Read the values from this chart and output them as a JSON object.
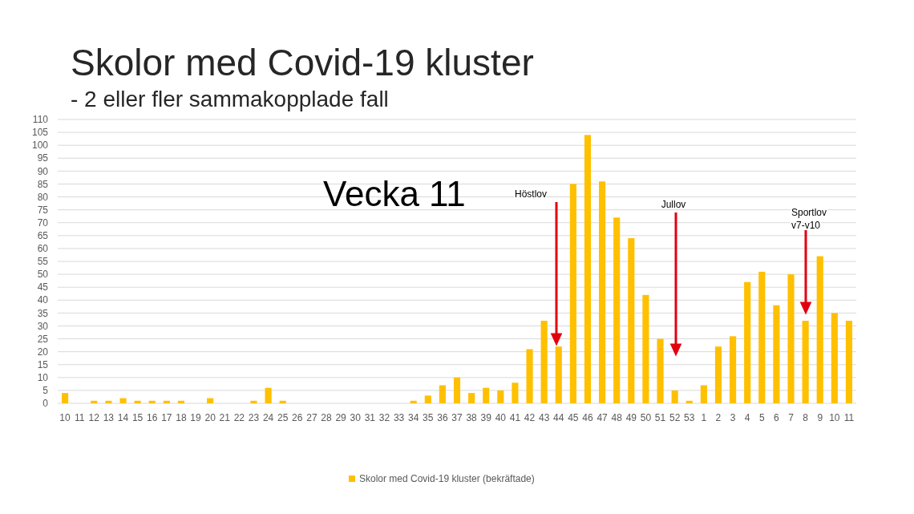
{
  "chart_data": {
    "type": "bar",
    "title": "Skolor med Covid-19 kluster",
    "subtitle": "- 2 eller fler sammakopplade fall",
    "categories": [
      "10",
      "11",
      "12",
      "13",
      "14",
      "15",
      "16",
      "17",
      "18",
      "19",
      "20",
      "21",
      "22",
      "23",
      "24",
      "25",
      "26",
      "27",
      "28",
      "29",
      "30",
      "31",
      "32",
      "33",
      "34",
      "35",
      "36",
      "37",
      "38",
      "39",
      "40",
      "41",
      "42",
      "43",
      "44",
      "45",
      "46",
      "47",
      "48",
      "49",
      "50",
      "51",
      "52",
      "53",
      "1",
      "2",
      "3",
      "4",
      "5",
      "6",
      "7",
      "8",
      "9",
      "10",
      "11"
    ],
    "series": [
      {
        "name": "Skolor med Covid-19 kluster (bekräftade)",
        "color": "#ffc000",
        "values": [
          4,
          0,
          1,
          1,
          2,
          1,
          1,
          1,
          1,
          0,
          2,
          0,
          0,
          1,
          6,
          1,
          0,
          0,
          0,
          0,
          0,
          0,
          0,
          0,
          1,
          3,
          7,
          10,
          4,
          6,
          5,
          8,
          21,
          32,
          22,
          85,
          104,
          86,
          72,
          64,
          42,
          25,
          5,
          1,
          7,
          22,
          26,
          47,
          51,
          38,
          50,
          32,
          57,
          35,
          32
        ]
      }
    ],
    "ylim": [
      0,
      110
    ],
    "yticks": [
      0,
      5,
      10,
      15,
      20,
      25,
      30,
      35,
      40,
      45,
      50,
      55,
      60,
      65,
      70,
      75,
      80,
      85,
      90,
      95,
      100,
      105,
      110
    ],
    "grid": "y",
    "legend": "bottom",
    "annotations": [
      "Vecka 11",
      "Höstlov",
      "Jullov",
      "Sportlov\nv7-v10"
    ]
  }
}
